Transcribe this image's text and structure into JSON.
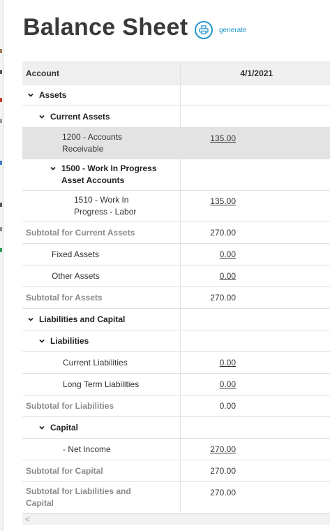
{
  "header": {
    "title": "Balance Sheet",
    "generate_label": "generate",
    "generate_icon": "printer-icon"
  },
  "table": {
    "columns": [
      "Account",
      "4/1/2021"
    ],
    "rows": [
      {
        "account": "Assets",
        "value": ""
      },
      {
        "account": "Current Assets",
        "value": ""
      },
      {
        "account": "1200 - Accounts Receivable",
        "value": "135.00"
      },
      {
        "account": "1500 - Work In Progress Asset Accounts",
        "value": ""
      },
      {
        "account": "1510 - Work In Progress - Labor",
        "value": "135.00"
      },
      {
        "account": "Subtotal for Current Assets",
        "value": "270.00"
      },
      {
        "account": "Fixed Assets",
        "value": "0.00"
      },
      {
        "account": "Other Assets",
        "value": "0.00"
      },
      {
        "account": "Subtotal for Assets",
        "value": "270.00"
      },
      {
        "account": "Liabilities and Capital",
        "value": ""
      },
      {
        "account": "Liabilities",
        "value": ""
      },
      {
        "account": "Current Liabilities",
        "value": "0.00"
      },
      {
        "account": "Long Term Liabilities",
        "value": "0.00"
      },
      {
        "account": "Subtotal for Liabilities",
        "value": "0.00"
      },
      {
        "account": "Capital",
        "value": ""
      },
      {
        "account": "- Net Income",
        "value": "270.00"
      },
      {
        "account": "Subtotal for Capital",
        "value": "270.00"
      },
      {
        "account": "Subtotal for Liabilities and Capital",
        "value": "270.00"
      }
    ]
  },
  "scrollbar": {
    "left_arrow": "<"
  },
  "colors": {
    "accent": "#2196c9",
    "subtotal_text": "#8a8a8a",
    "header_bg": "#efefef",
    "selected_row_bg": "#e3e3e3"
  }
}
